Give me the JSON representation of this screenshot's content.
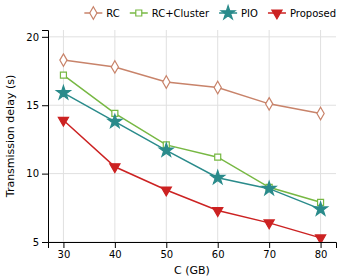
{
  "chart_data": {
    "type": "line",
    "x": [
      30,
      40,
      50,
      60,
      70,
      80
    ],
    "series": [
      {
        "name": "RC",
        "color": "#c8836a",
        "marker": "diamond",
        "values": [
          18.3,
          17.8,
          16.7,
          16.3,
          15.1,
          14.4
        ]
      },
      {
        "name": "RC+Cluster",
        "color": "#77b843",
        "marker": "square",
        "values": [
          17.2,
          14.4,
          12.1,
          11.2,
          9.0,
          7.9
        ]
      },
      {
        "name": "PIO",
        "color": "#2a8b8b",
        "marker": "star",
        "values": [
          15.9,
          13.8,
          11.7,
          9.7,
          8.9,
          7.4
        ]
      },
      {
        "name": "Proposed",
        "color": "#cc2222",
        "marker": "triangle-down",
        "values": [
          13.9,
          10.5,
          8.8,
          7.3,
          6.4,
          5.3
        ]
      }
    ],
    "xlabel": "C (GB)",
    "ylabel": "Transmission delay (s)",
    "xlim": [
      27,
      83
    ],
    "ylim": [
      5,
      20.5
    ],
    "xticks": [
      30,
      40,
      50,
      60,
      70,
      80
    ],
    "yticks": [
      5,
      10,
      15,
      20
    ],
    "grid": true,
    "legend": "upper right"
  }
}
